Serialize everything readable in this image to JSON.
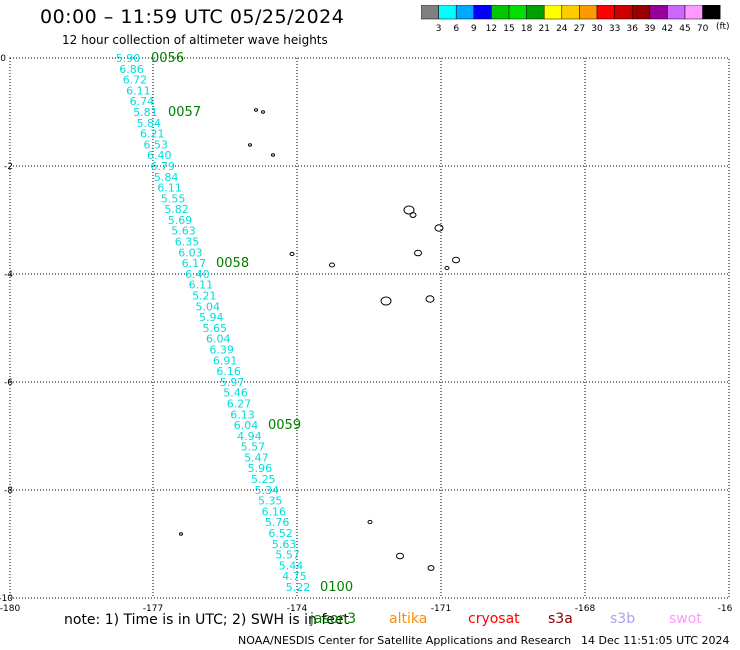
{
  "title": "00:00 – 11:59 UTC 05/25/2024",
  "subtitle": "12 hour collection of altimeter wave heights",
  "colorbar": {
    "unit": "(ft)",
    "labels": [
      "3",
      "6",
      "9",
      "12",
      "15",
      "18",
      "21",
      "24",
      "27",
      "30",
      "33",
      "36",
      "39",
      "42",
      "45",
      "70"
    ],
    "colors": [
      "#808080",
      "#00ffff",
      "#00a8ff",
      "#0000ff",
      "#00c800",
      "#00e000",
      "#00a000",
      "#ffff00",
      "#ffcc00",
      "#ff9900",
      "#ff0000",
      "#cc0000",
      "#990000",
      "#990099",
      "#cc66ff",
      "#ff99ff",
      "#000000"
    ]
  },
  "axes": {
    "x_ticks": [
      "-180",
      "-177",
      "-174",
      "-171",
      "-168",
      "-16"
    ],
    "y_ticks": [
      "0",
      "-2",
      "-4",
      "-6",
      "-8",
      "-10"
    ]
  },
  "track": {
    "color": "#00dddd",
    "values": [
      "5.90",
      "6.86",
      "6.72",
      "6.11",
      "6.74",
      "5.81",
      "5.84",
      "6.21",
      "6.53",
      "6.40",
      "6.79",
      "5.84",
      "6.11",
      "5.55",
      "5.82",
      "5.69",
      "5.63",
      "6.35",
      "6.03",
      "6.17",
      "6.40",
      "6.11",
      "5.21",
      "5.04",
      "5.94",
      "5.65",
      "6.04",
      "6.39",
      "6.91",
      "6.16",
      "5.97",
      "5.46",
      "6.27",
      "6.13",
      "6.04",
      "4.94",
      "5.57",
      "5.47",
      "5.96",
      "5.25",
      "5.34",
      "5.35",
      "6.16",
      "5.76",
      "6.52",
      "5.63",
      "5.57",
      "5.44",
      "4.75",
      "5.22"
    ]
  },
  "time_labels": {
    "color": "#008000",
    "items": [
      "0056",
      "0057",
      "0058",
      "0059",
      "0100"
    ]
  },
  "note": "note: 1) Time is in UTC; 2) SWH is in feet",
  "satellites": [
    {
      "name": "jason3",
      "color": "#008000"
    },
    {
      "name": "altika",
      "color": "#ff8c00"
    },
    {
      "name": "cryosat",
      "color": "#ff0000"
    },
    {
      "name": "s3a",
      "color": "#8b0000"
    },
    {
      "name": "s3b",
      "color": "#b0a0e8"
    },
    {
      "name": "swot",
      "color": "#ff99ff"
    }
  ],
  "credit": "NOAA/NESDIS Center for Satellite Applications and Research",
  "generated": "14 Dec 11:51:05 UTC 2024"
}
